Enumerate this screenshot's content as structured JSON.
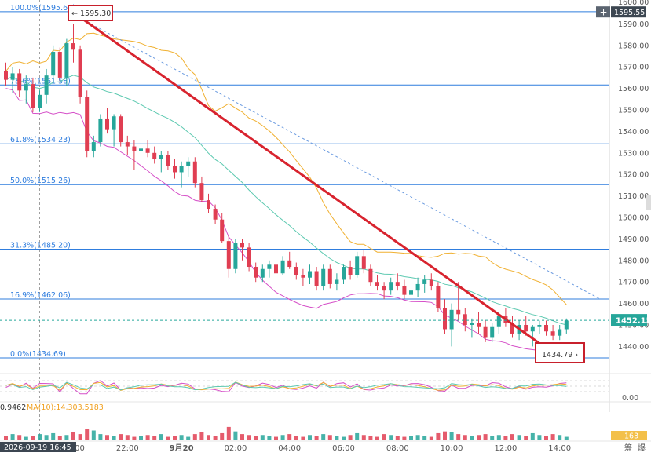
{
  "chart_data": {
    "type": "candlestick",
    "ylim": [
      1430,
      1600
    ],
    "y_ticks": [
      1440,
      1450,
      1460,
      1470,
      1480,
      1490,
      1500,
      1510,
      1520,
      1530,
      1540,
      1550,
      1560,
      1570,
      1580,
      1590,
      1600
    ],
    "y_tick_labels": [
      "1440.00",
      "1450.00",
      "1460.00",
      "1470.00",
      "1480.00",
      "1490.00",
      "1500.00",
      "1510.00",
      "1520.00",
      "1530.00",
      "1540.00",
      "1550.00",
      "1560.00",
      "1570.00",
      "1580.00",
      "1590.00",
      "1600.00"
    ],
    "x_ticks": [
      {
        "label": "20:00",
        "bar": 10
      },
      {
        "label": "22:00",
        "bar": 18
      },
      {
        "label": "9月20",
        "bar": 26
      },
      {
        "label": "02:00",
        "bar": 34
      },
      {
        "label": "04:00",
        "bar": 42
      },
      {
        "label": "06:00",
        "bar": 50
      },
      {
        "label": "08:00",
        "bar": 58
      },
      {
        "label": "10:00",
        "bar": 66
      },
      {
        "label": "12:00",
        "bar": 74
      },
      {
        "label": "14:00",
        "bar": 82
      }
    ],
    "fib_levels": [
      {
        "label": "100.0%(1595.68)",
        "value": 1595.68
      },
      {
        "label": "78.6%(1561.58)",
        "value": 1561.58
      },
      {
        "label": "61.8%(1534.23)",
        "value": 1534.23
      },
      {
        "label": "50.0%(1515.26)",
        "value": 1515.26
      },
      {
        "label": "31.3%(1485.20)",
        "value": 1485.2
      },
      {
        "label": "16.9%(1462.06)",
        "value": 1462.06
      },
      {
        "label": "0.0%(1434.69)",
        "value": 1434.69
      }
    ],
    "candles": [
      [
        1568,
        1572,
        1561,
        1564
      ],
      [
        1564,
        1570,
        1558,
        1567
      ],
      [
        1567,
        1569,
        1556,
        1559
      ],
      [
        1559,
        1566,
        1553,
        1562
      ],
      [
        1562,
        1565,
        1549,
        1551
      ],
      [
        1551,
        1559,
        1549,
        1557
      ],
      [
        1557,
        1569,
        1553,
        1566
      ],
      [
        1566,
        1580,
        1563,
        1577
      ],
      [
        1577,
        1579,
        1563,
        1565
      ],
      [
        1565,
        1583,
        1561,
        1581
      ],
      [
        1581,
        1590,
        1572,
        1578
      ],
      [
        1578,
        1580,
        1553,
        1556
      ],
      [
        1556,
        1559,
        1528,
        1531
      ],
      [
        1531,
        1538,
        1528,
        1535
      ],
      [
        1535,
        1548,
        1533,
        1546
      ],
      [
        1546,
        1551,
        1539,
        1541
      ],
      [
        1541,
        1548,
        1533,
        1547
      ],
      [
        1547,
        1548,
        1533,
        1535
      ],
      [
        1535,
        1538,
        1529,
        1533
      ],
      [
        1533,
        1536,
        1522,
        1531
      ],
      [
        1531,
        1534,
        1527,
        1532
      ],
      [
        1532,
        1536,
        1528,
        1530
      ],
      [
        1530,
        1533,
        1525,
        1527
      ],
      [
        1527,
        1531,
        1521,
        1529
      ],
      [
        1529,
        1531,
        1522,
        1524
      ],
      [
        1524,
        1527,
        1518,
        1521
      ],
      [
        1521,
        1526,
        1514,
        1524
      ],
      [
        1524,
        1528,
        1519,
        1526
      ],
      [
        1526,
        1528,
        1514,
        1516
      ],
      [
        1516,
        1519,
        1507,
        1508
      ],
      [
        1508,
        1511,
        1502,
        1504
      ],
      [
        1504,
        1506,
        1497,
        1499
      ],
      [
        1499,
        1502,
        1488,
        1489
      ],
      [
        1489,
        1492,
        1472,
        1476
      ],
      [
        1476,
        1490,
        1474,
        1488
      ],
      [
        1488,
        1490,
        1480,
        1486
      ],
      [
        1486,
        1488,
        1475,
        1477
      ],
      [
        1477,
        1479,
        1470,
        1472
      ],
      [
        1472,
        1478,
        1470,
        1476
      ],
      [
        1476,
        1480,
        1472,
        1478
      ],
      [
        1478,
        1481,
        1472,
        1474
      ],
      [
        1474,
        1482,
        1473,
        1480
      ],
      [
        1480,
        1484,
        1476,
        1477
      ],
      [
        1477,
        1479,
        1471,
        1473
      ],
      [
        1473,
        1476,
        1468,
        1472
      ],
      [
        1472,
        1478,
        1469,
        1475
      ],
      [
        1475,
        1477,
        1466,
        1468
      ],
      [
        1468,
        1478,
        1466,
        1476
      ],
      [
        1476,
        1478,
        1467,
        1469
      ],
      [
        1469,
        1474,
        1466,
        1471
      ],
      [
        1471,
        1478,
        1469,
        1477
      ],
      [
        1477,
        1480,
        1471,
        1473
      ],
      [
        1473,
        1484,
        1472,
        1482
      ],
      [
        1482,
        1485,
        1474,
        1476
      ],
      [
        1476,
        1478,
        1468,
        1470
      ],
      [
        1470,
        1473,
        1466,
        1468
      ],
      [
        1468,
        1470,
        1462,
        1466
      ],
      [
        1466,
        1472,
        1464,
        1470
      ],
      [
        1470,
        1474,
        1466,
        1468
      ],
      [
        1468,
        1471,
        1462,
        1464
      ],
      [
        1464,
        1468,
        1455,
        1466
      ],
      [
        1466,
        1472,
        1463,
        1469
      ],
      [
        1469,
        1473,
        1465,
        1471
      ],
      [
        1471,
        1474,
        1466,
        1468
      ],
      [
        1468,
        1470,
        1456,
        1458
      ],
      [
        1458,
        1462,
        1446,
        1448
      ],
      [
        1448,
        1460,
        1440,
        1457
      ],
      [
        1457,
        1470,
        1452,
        1455
      ],
      [
        1455,
        1458,
        1447,
        1450
      ],
      [
        1450,
        1453,
        1444,
        1451
      ],
      [
        1451,
        1456,
        1446,
        1449
      ],
      [
        1449,
        1452,
        1442,
        1444
      ],
      [
        1444,
        1451,
        1442,
        1449
      ],
      [
        1449,
        1456,
        1446,
        1454
      ],
      [
        1454,
        1458,
        1449,
        1451
      ],
      [
        1451,
        1454,
        1444,
        1446
      ],
      [
        1446,
        1452,
        1443,
        1450
      ],
      [
        1450,
        1454,
        1445,
        1447
      ],
      [
        1447,
        1450,
        1440,
        1449
      ],
      [
        1449,
        1452,
        1446,
        1450
      ],
      [
        1450,
        1452,
        1445,
        1447
      ],
      [
        1447,
        1450,
        1443,
        1445
      ],
      [
        1445,
        1450,
        1443,
        1448
      ],
      [
        1448,
        1453,
        1446,
        1452
      ]
    ],
    "trend_line": {
      "from": {
        "bar": 10,
        "price": 1595.3
      },
      "to": {
        "bar": 81,
        "price": 1437.0
      }
    },
    "dashed_trend": {
      "from": {
        "bar": 12,
        "price": 1591
      },
      "to": {
        "bar": 88,
        "price": 1462
      }
    },
    "annotations": {
      "high": "1595.30",
      "low": "1434.79"
    },
    "current_price": "1452.15",
    "current_price_value": 1452.15,
    "top_right_price": "1595.55",
    "cursor_time": "2026-09-19 16:45",
    "cursor_bar": 5,
    "indicator_axis_label": "0.00",
    "ma_text": "0.9462",
    "ma10_label": "MA(10):14,303.5183",
    "volume_badge": "163",
    "corner_labels": [
      "筹",
      "爆"
    ],
    "volumes": [
      4,
      6,
      5,
      3,
      4,
      6,
      5,
      7,
      4,
      5,
      8,
      6,
      12,
      10,
      6,
      5,
      4,
      6,
      5,
      3,
      4,
      5,
      4,
      6,
      3,
      4,
      5,
      3,
      6,
      8,
      5,
      4,
      7,
      14,
      9,
      6,
      5,
      4,
      5,
      4,
      3,
      5,
      6,
      4,
      3,
      5,
      4,
      6,
      5,
      4,
      3,
      5,
      7,
      5,
      4,
      3,
      6,
      5,
      4,
      3,
      4,
      5,
      4,
      3,
      7,
      9,
      8,
      6,
      5,
      4,
      5,
      6,
      4,
      5,
      4,
      6,
      5,
      4,
      7,
      5,
      4,
      6,
      5,
      3
    ]
  }
}
